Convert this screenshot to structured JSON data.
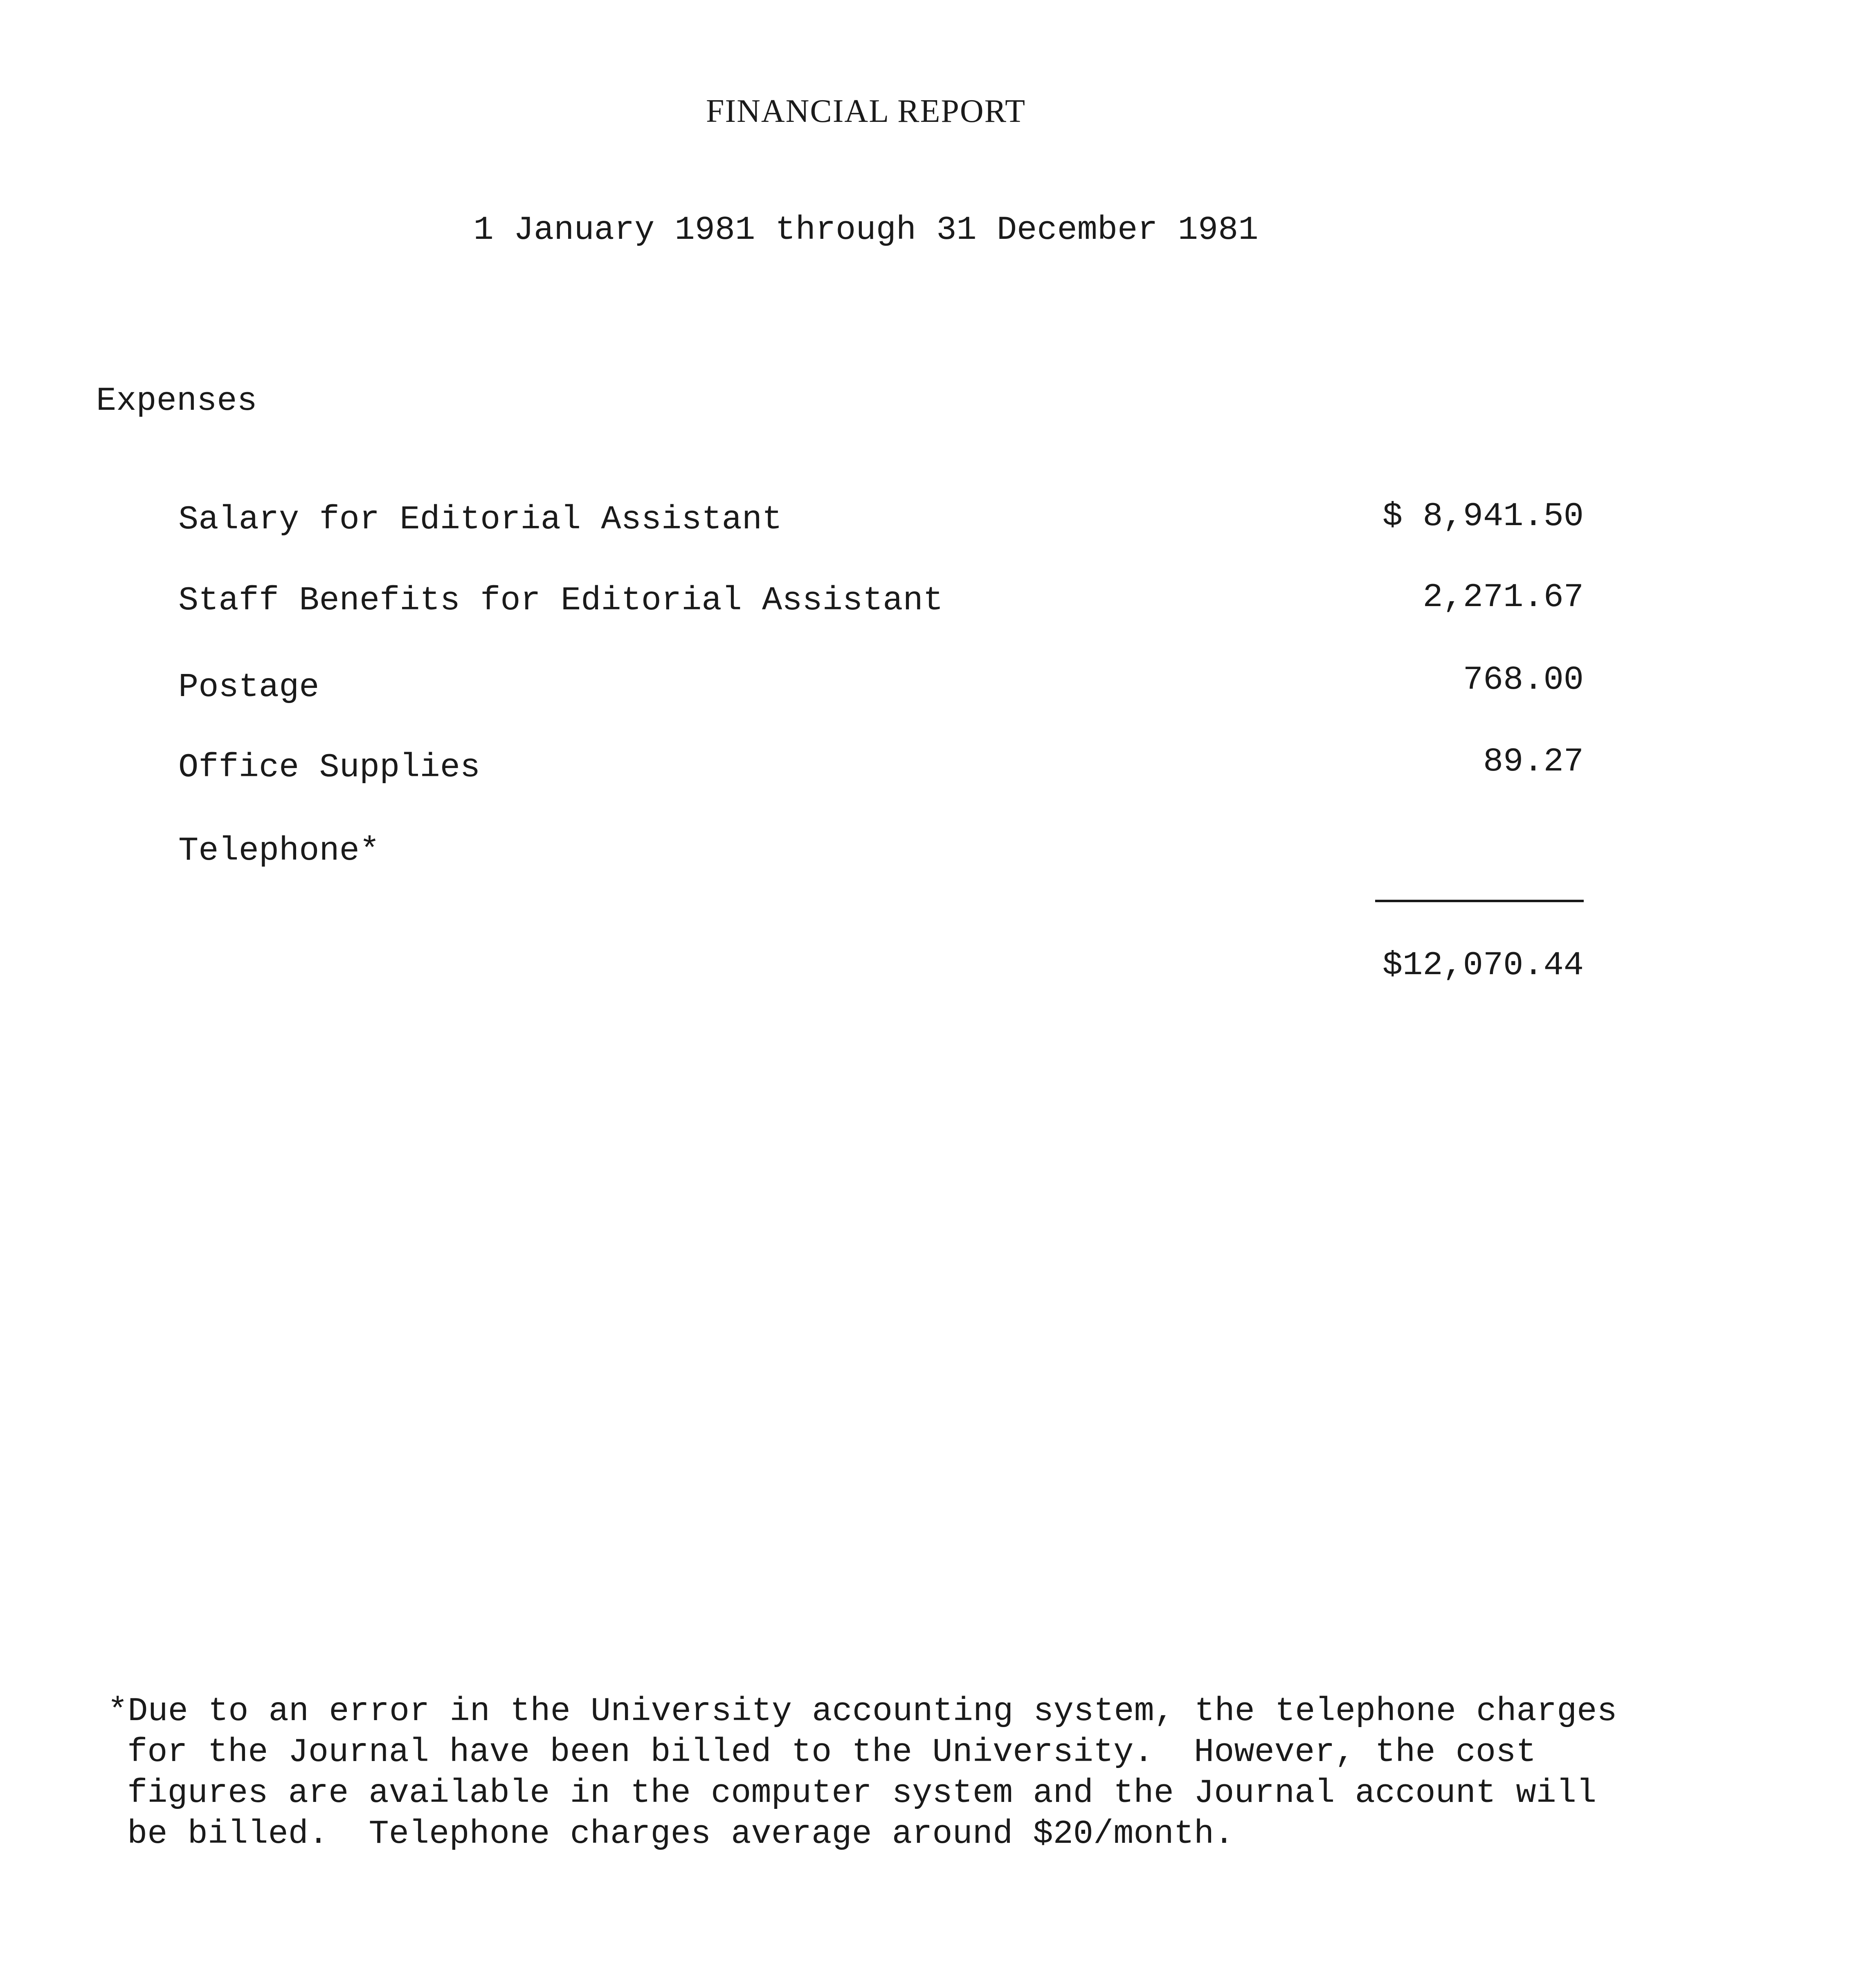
{
  "title": "FINANCIAL REPORT",
  "period": "1 January 1981 through 31 December 1981",
  "expenses": {
    "heading": "Expenses",
    "items": [
      {
        "label": "Salary for Editorial Assistant",
        "amount": "$ 8,941.50"
      },
      {
        "label": "Staff Benefits for Editorial Assistant",
        "amount": "2,271.67"
      },
      {
        "label": "Postage",
        "amount": "768.00"
      },
      {
        "label": "Office Supplies",
        "amount": "89.27"
      },
      {
        "label": "Telephone*",
        "amount": ""
      }
    ],
    "total": "$12,070.44"
  },
  "footnote": {
    "lines": [
      "*Due to an error in the University accounting system, the telephone charges",
      "for the Journal have been billed to the University.  However, the cost",
      "figures are available in the computer system and the Journal account will",
      "be billed.  Telephone charges average around $20/month."
    ]
  }
}
